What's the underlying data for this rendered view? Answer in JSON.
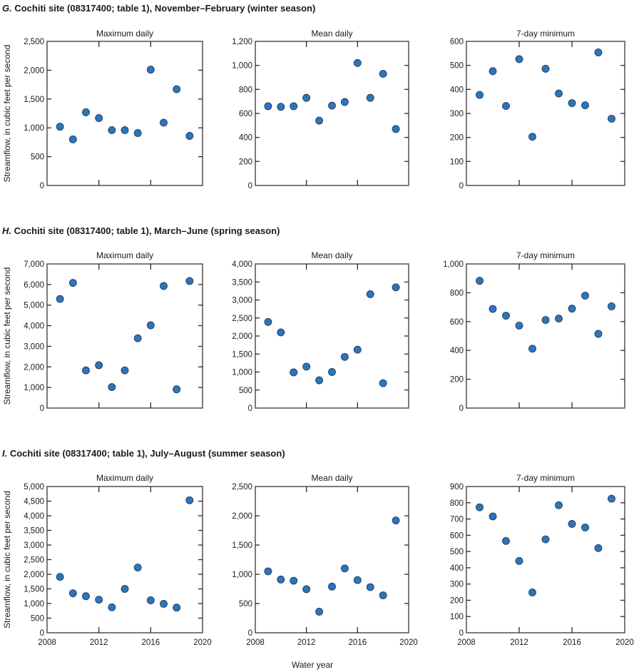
{
  "figure": {
    "ylabel": "Streamflow, in cubic feet per second",
    "xlabel": "Water year",
    "marker_color": "#2e75b6"
  },
  "chart_data": [
    {
      "type": "scatter",
      "section": "G",
      "title": "G. Cochiti site (08317400; table 1), November–February (winter season)",
      "title_letter": "G.",
      "title_rest": " Cochiti site (08317400; table 1), November–February (winter season)",
      "panels": [
        {
          "title": "Maximum daily",
          "ylim": [
            0,
            2500
          ],
          "yticks": [
            0,
            500,
            1000,
            1500,
            2000,
            2500
          ],
          "ytick_labels": [
            "0",
            "500",
            "1,000",
            "1,500",
            "2,000",
            "2,500"
          ],
          "x": [
            2009,
            2010,
            2011,
            2012,
            2013,
            2014,
            2015,
            2016,
            2017,
            2018,
            2019
          ],
          "y": [
            1020,
            800,
            1270,
            1170,
            960,
            960,
            910,
            2010,
            1090,
            1670,
            860
          ]
        },
        {
          "title": "Mean daily",
          "ylim": [
            0,
            1200
          ],
          "yticks": [
            0,
            200,
            400,
            600,
            800,
            1000,
            1200
          ],
          "ytick_labels": [
            "0",
            "200",
            "400",
            "600",
            "800",
            "1,000",
            "1,200"
          ],
          "x": [
            2009,
            2010,
            2011,
            2012,
            2013,
            2014,
            2015,
            2016,
            2017,
            2018,
            2019
          ],
          "y": [
            660,
            655,
            660,
            730,
            540,
            665,
            695,
            1020,
            730,
            930,
            470
          ]
        },
        {
          "title": "7-day minimum",
          "ylim": [
            0,
            600
          ],
          "yticks": [
            0,
            100,
            200,
            300,
            400,
            500,
            600
          ],
          "ytick_labels": [
            "0",
            "100",
            "200",
            "300",
            "400",
            "500",
            "600"
          ],
          "x": [
            2009,
            2010,
            2011,
            2012,
            2013,
            2014,
            2015,
            2016,
            2017,
            2018,
            2019
          ],
          "y": [
            377,
            476,
            331,
            526,
            203,
            486,
            383,
            343,
            334,
            554,
            278
          ]
        }
      ]
    },
    {
      "type": "scatter",
      "section": "H",
      "title": "H. Cochiti site (08317400; table 1), March–June (spring season)",
      "title_letter": "H.",
      "title_rest": " Cochiti site (08317400; table 1), March–June (spring season)",
      "panels": [
        {
          "title": "Maximum daily",
          "ylim": [
            0,
            7000
          ],
          "yticks": [
            0,
            1000,
            2000,
            3000,
            4000,
            5000,
            6000,
            7000
          ],
          "ytick_labels": [
            "0",
            "1,000",
            "2,000",
            "3,000",
            "4,000",
            "5,000",
            "6,000",
            "7,000"
          ],
          "x": [
            2009,
            2010,
            2011,
            2012,
            2013,
            2014,
            2015,
            2016,
            2017,
            2018,
            2019
          ],
          "y": [
            5300,
            6080,
            1830,
            2080,
            1020,
            1830,
            3390,
            4020,
            5930,
            910,
            6170
          ]
        },
        {
          "title": "Mean daily",
          "ylim": [
            0,
            4000
          ],
          "yticks": [
            0,
            500,
            1000,
            1500,
            2000,
            2500,
            3000,
            3500,
            4000
          ],
          "ytick_labels": [
            "0",
            "500",
            "1,000",
            "1,500",
            "2,000",
            "2,500",
            "3,000",
            "3,500",
            "4,000"
          ],
          "x": [
            2009,
            2010,
            2011,
            2012,
            2013,
            2014,
            2015,
            2016,
            2017,
            2018,
            2019
          ],
          "y": [
            2390,
            2100,
            990,
            1150,
            770,
            1000,
            1420,
            1620,
            3160,
            690,
            3350
          ]
        },
        {
          "title": "7-day minimum",
          "ylim": [
            0,
            1000
          ],
          "yticks": [
            0,
            200,
            400,
            600,
            800,
            1000
          ],
          "ytick_labels": [
            "0",
            "200",
            "400",
            "600",
            "800",
            "1,000"
          ],
          "x": [
            2009,
            2010,
            2011,
            2012,
            2013,
            2014,
            2015,
            2016,
            2017,
            2018,
            2019
          ],
          "y": [
            883,
            688,
            641,
            572,
            412,
            611,
            621,
            690,
            780,
            515,
            706
          ]
        }
      ]
    },
    {
      "type": "scatter",
      "section": "I",
      "title": "I. Cochiti site (08317400; table 1), July–August (summer season)",
      "title_letter": "I.",
      "title_rest": " Cochiti site (08317400; table 1), July–August (summer season)",
      "panels": [
        {
          "title": "Maximum daily",
          "ylim": [
            0,
            5000
          ],
          "yticks": [
            0,
            500,
            1000,
            1500,
            2000,
            2500,
            3000,
            3500,
            4000,
            4500,
            5000
          ],
          "ytick_labels": [
            "0",
            "500",
            "1,000",
            "1,500",
            "2,000",
            "2,500",
            "3,000",
            "3,500",
            "4,000",
            "4,500",
            "5,000"
          ],
          "x": [
            2009,
            2010,
            2011,
            2012,
            2013,
            2014,
            2015,
            2016,
            2017,
            2018,
            2019
          ],
          "y": [
            1910,
            1350,
            1250,
            1130,
            870,
            1500,
            2230,
            1110,
            990,
            860,
            4530
          ]
        },
        {
          "title": "Mean daily",
          "ylim": [
            0,
            2500
          ],
          "yticks": [
            0,
            500,
            1000,
            1500,
            2000,
            2500
          ],
          "ytick_labels": [
            "0",
            "500",
            "1,000",
            "1,500",
            "2,000",
            "2,500"
          ],
          "x": [
            2009,
            2010,
            2011,
            2012,
            2013,
            2014,
            2015,
            2016,
            2017,
            2018,
            2019
          ],
          "y": [
            1050,
            910,
            890,
            745,
            360,
            790,
            1100,
            900,
            780,
            640,
            1920
          ]
        },
        {
          "title": "7-day minimum",
          "ylim": [
            0,
            900
          ],
          "yticks": [
            0,
            100,
            200,
            300,
            400,
            500,
            600,
            700,
            800,
            900
          ],
          "ytick_labels": [
            "0",
            "100",
            "200",
            "300",
            "400",
            "500",
            "600",
            "700",
            "800",
            "900"
          ],
          "x": [
            2009,
            2010,
            2011,
            2012,
            2013,
            2014,
            2015,
            2016,
            2017,
            2018,
            2019
          ],
          "y": [
            772,
            716,
            565,
            442,
            248,
            575,
            785,
            670,
            648,
            521,
            825
          ]
        }
      ]
    }
  ],
  "xaxis": {
    "xlim": [
      2008,
      2020
    ],
    "xticks": [
      2008,
      2012,
      2016,
      2020
    ],
    "xtick_labels": [
      "2008",
      "2012",
      "2016",
      "2020"
    ],
    "tick_labels_shown_on": "bottom row only"
  }
}
